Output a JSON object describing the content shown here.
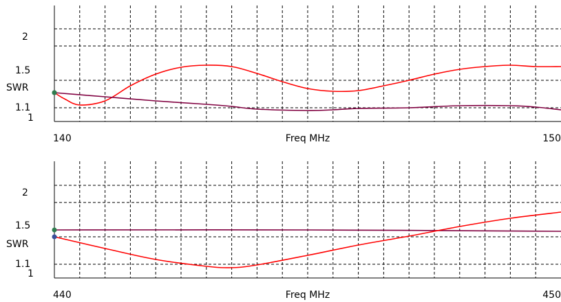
{
  "chart_data": [
    {
      "type": "line",
      "xlabel": "Freq MHz",
      "ylabel": "SWR",
      "xlim": [
        140,
        150
      ],
      "ylim": [
        1,
        2.4
      ],
      "grid": true,
      "yticks": [
        1,
        1.1,
        1.5,
        2
      ],
      "ytick_labels": [
        "1",
        "1.1",
        "1.5",
        "2"
      ],
      "xtick_labels": [
        "140",
        "150"
      ],
      "series": [
        {
          "color": "#ff0000",
          "x": [
            140,
            140.2,
            140.5,
            141,
            141.5,
            142,
            142.5,
            143,
            143.5,
            144,
            144.5,
            145,
            145.5,
            146,
            146.5,
            147,
            147.5,
            148,
            148.5,
            149,
            149.5,
            150
          ],
          "y": [
            1.32,
            1.23,
            1.14,
            1.2,
            1.42,
            1.59,
            1.69,
            1.72,
            1.7,
            1.6,
            1.48,
            1.38,
            1.34,
            1.35,
            1.42,
            1.5,
            1.59,
            1.66,
            1.7,
            1.72,
            1.7,
            1.7
          ]
        },
        {
          "color": "#800040",
          "x": [
            140,
            141,
            142,
            143,
            143.5,
            144,
            145,
            145.5,
            146,
            147,
            148,
            149,
            149.5,
            150
          ],
          "y": [
            1.32,
            1.26,
            1.2,
            1.15,
            1.12,
            1.08,
            1.06,
            1.07,
            1.09,
            1.1,
            1.13,
            1.13,
            1.11,
            1.07
          ]
        }
      ]
    },
    {
      "type": "line",
      "xlabel": "Freq MHz",
      "ylabel": "SWR",
      "xlim": [
        440,
        450
      ],
      "ylim": [
        1,
        2.4
      ],
      "grid": true,
      "yticks": [
        1,
        1.1,
        1.5,
        2
      ],
      "ytick_labels": [
        "1",
        "1.1",
        "1.5",
        "2"
      ],
      "xtick_labels": [
        "440",
        "450"
      ],
      "series": [
        {
          "color": "#800040",
          "x": [
            440,
            445,
            450
          ],
          "y": [
            1.6,
            1.6,
            1.58
          ]
        },
        {
          "color": "#ff0000",
          "x": [
            440,
            441,
            442,
            443,
            443.5,
            444,
            445,
            446,
            447,
            448,
            449,
            450
          ],
          "y": [
            1.5,
            1.33,
            1.17,
            1.07,
            1.05,
            1.09,
            1.23,
            1.38,
            1.51,
            1.65,
            1.77,
            1.86
          ]
        }
      ]
    }
  ]
}
